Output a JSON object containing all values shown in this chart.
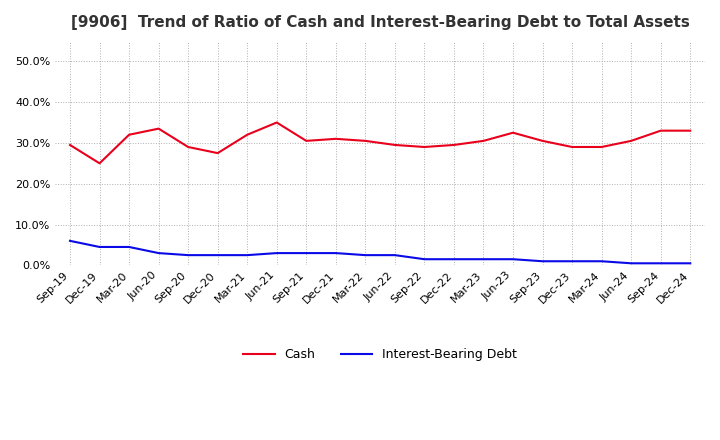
{
  "title": "[9906]  Trend of Ratio of Cash and Interest-Bearing Debt to Total Assets",
  "x_labels": [
    "Sep-19",
    "Dec-19",
    "Mar-20",
    "Jun-20",
    "Sep-20",
    "Dec-20",
    "Mar-21",
    "Jun-21",
    "Sep-21",
    "Dec-21",
    "Mar-22",
    "Jun-22",
    "Sep-22",
    "Dec-22",
    "Mar-23",
    "Jun-23",
    "Sep-23",
    "Dec-23",
    "Mar-24",
    "Jun-24",
    "Sep-24",
    "Dec-24"
  ],
  "cash": [
    29.5,
    25.0,
    32.0,
    33.5,
    29.0,
    27.5,
    32.0,
    35.0,
    30.5,
    31.0,
    30.5,
    29.5,
    29.0,
    29.5,
    30.5,
    32.5,
    30.5,
    29.0,
    29.0,
    30.5,
    33.0,
    33.0
  ],
  "interest_bearing_debt": [
    6.0,
    4.5,
    4.5,
    3.0,
    2.5,
    2.5,
    2.5,
    3.0,
    3.0,
    3.0,
    2.5,
    2.5,
    1.5,
    1.5,
    1.5,
    1.5,
    1.0,
    1.0,
    1.0,
    0.5,
    0.5,
    0.5
  ],
  "cash_color": "#e8001c",
  "debt_color": "#0a0ae8",
  "ylim": [
    0,
    55
  ],
  "yticks": [
    0,
    10,
    20,
    30,
    40,
    50
  ],
  "background_color": "#ffffff",
  "grid_color": "#b0b0b0",
  "title_fontsize": 11,
  "tick_fontsize": 8,
  "legend_fontsize": 9
}
